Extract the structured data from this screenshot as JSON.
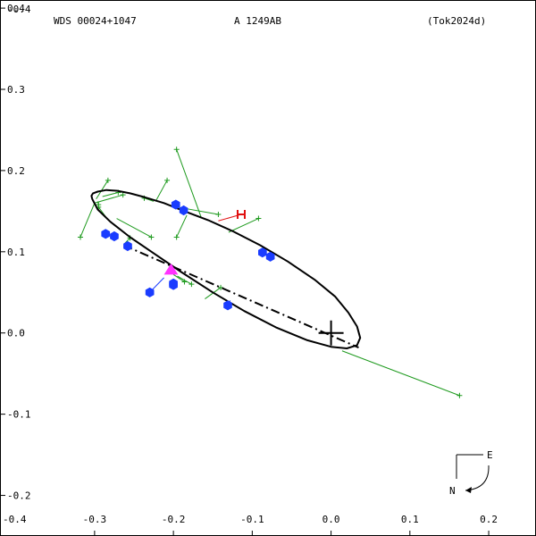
{
  "header": {
    "left": "WDS 00024+1047",
    "center": "A  1249AB",
    "right": "(Tok2024d)"
  },
  "compass": {
    "east": "E",
    "north": "N"
  },
  "chart_data": {
    "type": "scatter",
    "grid": false,
    "xlim": [
      0.42,
      -0.26
    ],
    "ylim": [
      -0.25,
      0.41
    ],
    "x_ticks": [
      {
        "v": -0.3,
        "label": "-0.3"
      },
      {
        "v": -0.2,
        "label": "-0.2"
      },
      {
        "v": -0.1,
        "label": "-0.1"
      },
      {
        "v": 0.0,
        "label": "0.0"
      },
      {
        "v": 0.1,
        "label": "0.1"
      },
      {
        "v": 0.2,
        "label": "0.2"
      }
    ],
    "x_corner_label": "-0.4",
    "y_ticks": [
      {
        "v": 0.4,
        "label": "0.4"
      },
      {
        "v": 0.3,
        "label": "0.3"
      },
      {
        "v": 0.2,
        "label": "0.2"
      },
      {
        "v": 0.1,
        "label": "0.1"
      },
      {
        "v": 0.0,
        "label": "0.0"
      },
      {
        "v": -0.1,
        "label": "-0.1"
      },
      {
        "v": -0.2,
        "label": "-0.2"
      }
    ],
    "y_corner_label": "-0.4",
    "ellipse_points": [
      [
        -0.303,
        0.165
      ],
      [
        -0.304,
        0.169
      ],
      [
        -0.302,
        0.172
      ],
      [
        -0.296,
        0.174
      ],
      [
        -0.285,
        0.176
      ],
      [
        -0.271,
        0.175
      ],
      [
        -0.255,
        0.172
      ],
      [
        -0.236,
        0.167
      ],
      [
        -0.212,
        0.16
      ],
      [
        -0.186,
        0.15
      ],
      [
        -0.156,
        0.139
      ],
      [
        -0.124,
        0.125
      ],
      [
        -0.09,
        0.108
      ],
      [
        -0.055,
        0.088
      ],
      [
        -0.02,
        0.065
      ],
      [
        0.005,
        0.045
      ],
      [
        0.022,
        0.025
      ],
      [
        0.033,
        0.008
      ],
      [
        0.037,
        -0.006
      ],
      [
        0.033,
        -0.015
      ],
      [
        0.02,
        -0.019
      ],
      [
        0.0,
        -0.017
      ],
      [
        -0.03,
        -0.009
      ],
      [
        -0.07,
        0.007
      ],
      [
        -0.11,
        0.027
      ],
      [
        -0.15,
        0.05
      ],
      [
        -0.19,
        0.075
      ],
      [
        -0.225,
        0.098
      ],
      [
        -0.255,
        0.118
      ],
      [
        -0.28,
        0.137
      ],
      [
        -0.296,
        0.152
      ],
      [
        -0.303,
        0.165
      ]
    ],
    "line_of_nodes": [
      [
        -0.263,
        0.108
      ],
      [
        0.035,
        -0.018
      ]
    ],
    "center_star": [
      0.0,
      0.0
    ],
    "blue_points": [
      [
        -0.286,
        0.122
      ],
      [
        -0.275,
        0.119
      ],
      [
        -0.258,
        0.107
      ],
      [
        -0.197,
        0.158
      ],
      [
        -0.187,
        0.151
      ],
      [
        -0.23,
        0.05
      ],
      [
        -0.2,
        0.061
      ],
      [
        -0.2,
        0.059
      ],
      [
        -0.131,
        0.034
      ],
      [
        -0.087,
        0.099
      ],
      [
        -0.077,
        0.094
      ]
    ],
    "green_residuals": [
      {
        "obs": [
          -0.264,
          0.17
        ],
        "pred": [
          -0.3,
          0.16
        ]
      },
      {
        "obs": [
          -0.283,
          0.188
        ],
        "pred": [
          -0.298,
          0.165
        ]
      },
      {
        "obs": [
          -0.318,
          0.118
        ],
        "pred": [
          -0.3,
          0.16
        ]
      },
      {
        "obs": [
          -0.295,
          0.155
        ],
        "pred": [
          -0.285,
          0.142
        ]
      },
      {
        "obs": [
          -0.237,
          0.166
        ],
        "pred": [
          -0.225,
          0.162
        ]
      },
      {
        "obs": [
          -0.208,
          0.188
        ],
        "pred": [
          -0.222,
          0.163
        ]
      },
      {
        "obs": [
          -0.196,
          0.226
        ],
        "pred": [
          -0.165,
          0.143
        ]
      },
      {
        "obs": [
          -0.143,
          0.146
        ],
        "pred": [
          -0.195,
          0.155
        ]
      },
      {
        "obs": [
          -0.228,
          0.118
        ],
        "pred": [
          -0.272,
          0.141
        ]
      },
      {
        "obs": [
          -0.196,
          0.118
        ],
        "pred": [
          -0.183,
          0.145
        ]
      },
      {
        "obs": [
          -0.092,
          0.141
        ],
        "pred": [
          -0.13,
          0.124
        ]
      },
      {
        "obs": [
          -0.255,
          0.117
        ],
        "pred": [
          -0.262,
          0.11
        ]
      },
      {
        "obs": [
          -0.186,
          0.063
        ],
        "pred": [
          -0.2,
          0.072
        ]
      },
      {
        "obs": [
          -0.177,
          0.06
        ],
        "pred": [
          -0.195,
          0.07
        ]
      },
      {
        "obs": [
          -0.14,
          0.056
        ],
        "pred": [
          -0.16,
          0.042
        ]
      },
      {
        "obs": [
          0.163,
          -0.077
        ],
        "pred": [
          0.014,
          -0.022
        ]
      },
      {
        "obs": [
          -0.27,
          0.173
        ],
        "pred": [
          -0.29,
          0.168
        ]
      },
      {
        "obs": [
          -0.295,
          0.158
        ],
        "pred": [
          -0.296,
          0.162
        ]
      }
    ],
    "blue_connectors": [
      {
        "from": [
          -0.23,
          0.05
        ],
        "to": [
          -0.212,
          0.068
        ]
      },
      {
        "from": [
          -0.131,
          0.034
        ],
        "to": [
          -0.128,
          0.04
        ]
      }
    ],
    "red_marker": {
      "pos": [
        -0.114,
        0.146
      ],
      "pred": [
        -0.143,
        0.138
      ]
    },
    "magenta_triangle": [
      -0.203,
      0.078
    ]
  }
}
